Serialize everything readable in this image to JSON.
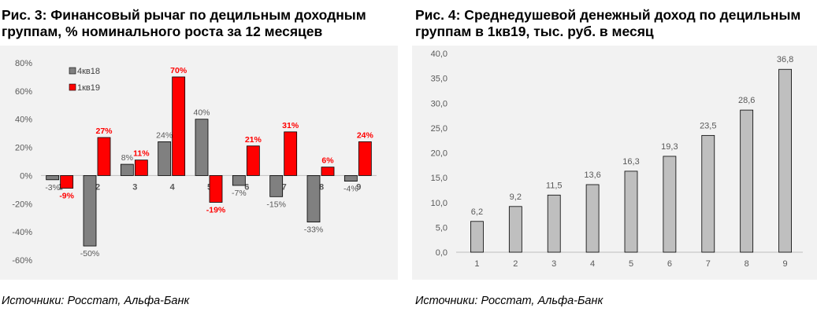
{
  "figures": [
    {
      "title_line1": "Рис. 3: Финансовый рычаг по децильным доходным",
      "title_line2": "группам, % номинального роста за 12 месяцев",
      "source": "Источники: Росстат, Альфа-Банк"
    },
    {
      "title_line1": "Рис. 4: Среднедушевой денежный доход по децильным",
      "title_line2": "группам в 1кв19, тыс. руб. в месяц",
      "source": "Источники: Росстат, Альфа-Банк"
    }
  ],
  "chart_data": [
    {
      "type": "bar",
      "categories": [
        "1",
        "2",
        "3",
        "4",
        "5",
        "6",
        "7",
        "8",
        "9"
      ],
      "series": [
        {
          "name": "4кв18",
          "color": "#808080",
          "values": [
            -3,
            -50,
            8,
            24,
            40,
            -7,
            -15,
            -33,
            -4
          ],
          "labels": [
            "-3%",
            "-50%",
            "8%",
            "24%",
            "40%",
            "-7%",
            "-15%",
            "-33%",
            "-4%"
          ]
        },
        {
          "name": "1кв19",
          "color": "#ff0000",
          "values": [
            -9,
            27,
            11,
            70,
            -19,
            21,
            31,
            6,
            24
          ],
          "labels": [
            "-9%",
            "27%",
            "11%",
            "70%",
            "-19%",
            "21%",
            "31%",
            "6%",
            "24%"
          ]
        }
      ],
      "yticks": [
        "80%",
        "60%",
        "40%",
        "20%",
        "0%",
        "-20%",
        "-40%",
        "-60%"
      ],
      "ylim": [
        -60,
        80
      ],
      "legend_position": "top-left",
      "grid": false
    },
    {
      "type": "bar",
      "categories": [
        "1",
        "2",
        "3",
        "4",
        "5",
        "6",
        "7",
        "8",
        "9"
      ],
      "values": [
        6.2,
        9.2,
        11.5,
        13.6,
        16.3,
        19.3,
        23.5,
        28.6,
        36.8
      ],
      "labels": [
        "6,2",
        "9,2",
        "11,5",
        "13,6",
        "16,3",
        "19,3",
        "23,5",
        "28,6",
        "36,8"
      ],
      "color": "#bfbfbf",
      "yticks": [
        "40,0",
        "35,0",
        "30,0",
        "25,0",
        "20,0",
        "15,0",
        "10,0",
        "5,0",
        "0,0"
      ],
      "ylim": [
        0,
        40
      ],
      "grid": false
    }
  ]
}
